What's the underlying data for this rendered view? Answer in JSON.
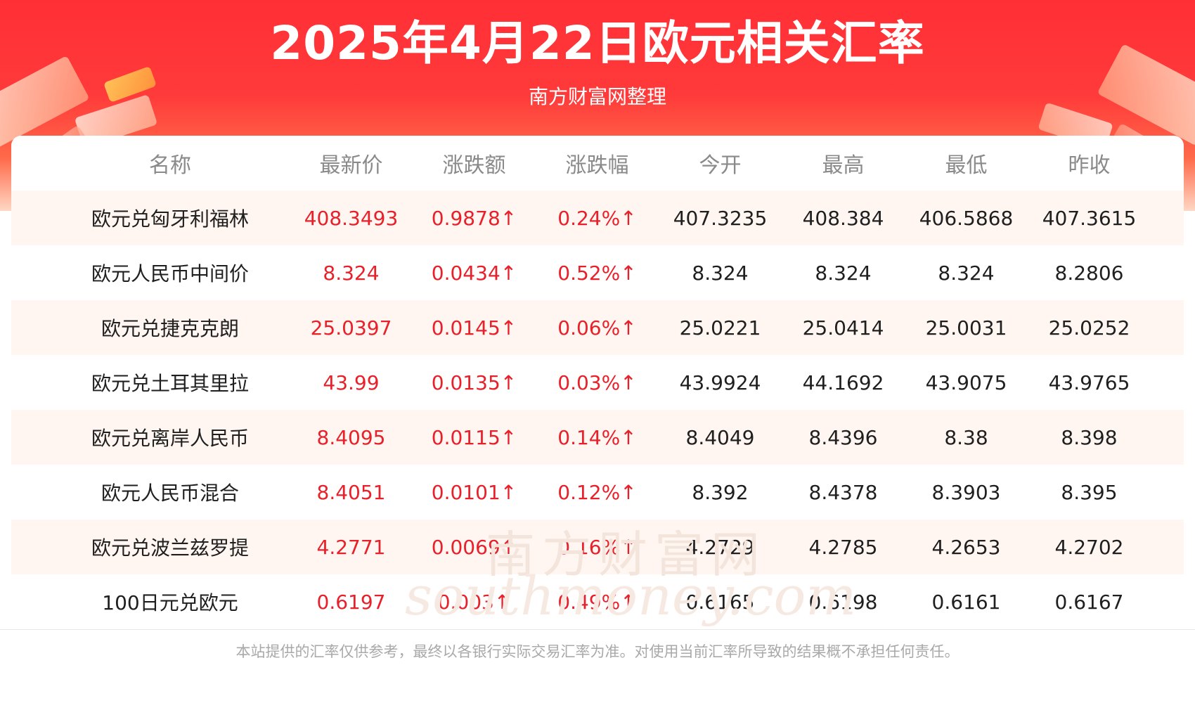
{
  "title": "2025年4月22日欧元相关汇率",
  "subtitle": "南方财富网整理",
  "watermark": {
    "cn": "南方财富网",
    "en": "southmoney.com"
  },
  "table": {
    "headers": [
      "名称",
      "最新价",
      "涨跌额",
      "涨跌幅",
      "今开",
      "最高",
      "最低",
      "昨收"
    ],
    "rows": [
      [
        "欧元兑匈牙利福林",
        "408.3493",
        "0.9878↑",
        "0.24%↑",
        "407.3235",
        "408.384",
        "406.5868",
        "407.3615"
      ],
      [
        "欧元人民币中间价",
        "8.324",
        "0.0434↑",
        "0.52%↑",
        "8.324",
        "8.324",
        "8.324",
        "8.2806"
      ],
      [
        "欧元兑捷克克朗",
        "25.0397",
        "0.0145↑",
        "0.06%↑",
        "25.0221",
        "25.0414",
        "25.0031",
        "25.0252"
      ],
      [
        "欧元兑土耳其里拉",
        "43.99",
        "0.0135↑",
        "0.03%↑",
        "43.9924",
        "44.1692",
        "43.9075",
        "43.9765"
      ],
      [
        "欧元兑离岸人民币",
        "8.4095",
        "0.0115↑",
        "0.14%↑",
        "8.4049",
        "8.4396",
        "8.38",
        "8.398"
      ],
      [
        "欧元人民币混合",
        "8.4051",
        "0.0101↑",
        "0.12%↑",
        "8.392",
        "8.4378",
        "8.3903",
        "8.395"
      ],
      [
        "欧元兑波兰兹罗提",
        "4.2771",
        "0.0069↑",
        "0.16%↑",
        "4.2729",
        "4.2785",
        "4.2653",
        "4.2702"
      ],
      [
        "100日元兑欧元",
        "0.6197",
        "0.003↑",
        "0.49%↑",
        "0.6165",
        "0.6198",
        "0.6161",
        "0.6167"
      ]
    ]
  },
  "footer": "本站提供的汇率仅供参考，最终以各银行实际交易汇率为准。对使用当前汇率所导致的结果概不承担任何责任。",
  "colors": {
    "banner_red": "#ff2f36",
    "up_red": "#e8202a",
    "row_shade": "#fff6f1",
    "header_text": "#8a8a8a"
  }
}
